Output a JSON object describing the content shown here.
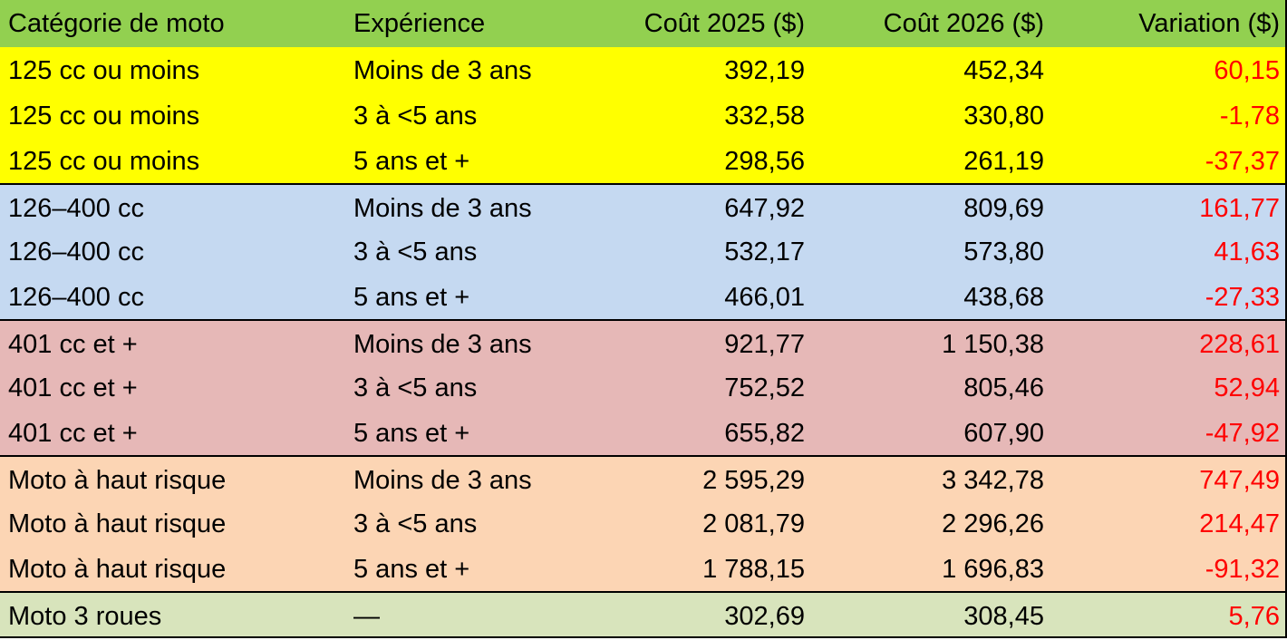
{
  "table": {
    "header": [
      "Catégorie de moto",
      "Expérience",
      "Coût 2025 ($)",
      "Coût 2026 ($)",
      "Variation ($)"
    ],
    "rows": [
      [
        "125 cc ou moins",
        "Moins de 3 ans",
        "392,19",
        "452,34",
        "60,15"
      ],
      [
        "125 cc ou moins",
        "3 à <5 ans",
        "332,58",
        "330,80",
        "-1,78"
      ],
      [
        "125 cc ou moins",
        "5 ans et +",
        "298,56",
        "261,19",
        "-37,37"
      ],
      [
        "126–400 cc",
        "Moins de 3 ans",
        "647,92",
        "809,69",
        "161,77"
      ],
      [
        "126–400 cc",
        "3 à <5 ans",
        "532,17",
        "573,80",
        "41,63"
      ],
      [
        "126–400 cc",
        "5 ans et +",
        "466,01",
        "438,68",
        "-27,33"
      ],
      [
        "401 cc et +",
        "Moins de 3 ans",
        "921,77",
        "1 150,38",
        "228,61"
      ],
      [
        "401 cc et +",
        "3 à <5 ans",
        "752,52",
        "805,46",
        "52,94"
      ],
      [
        "401 cc et +",
        "5 ans et +",
        "655,82",
        "607,90",
        "-47,92"
      ],
      [
        "Moto à haut risque",
        "Moins de 3 ans",
        "2 595,29",
        "3 342,78",
        "747,49"
      ],
      [
        "Moto à haut risque",
        "3 à <5 ans",
        "2 081,79",
        "2 296,26",
        "214,47"
      ],
      [
        "Moto à haut risque",
        "5 ans et +",
        "1 788,15",
        "1 696,83",
        "-91,32"
      ],
      [
        "Moto 3 roues",
        "—",
        "302,69",
        "308,45",
        "5,76"
      ]
    ]
  }
}
